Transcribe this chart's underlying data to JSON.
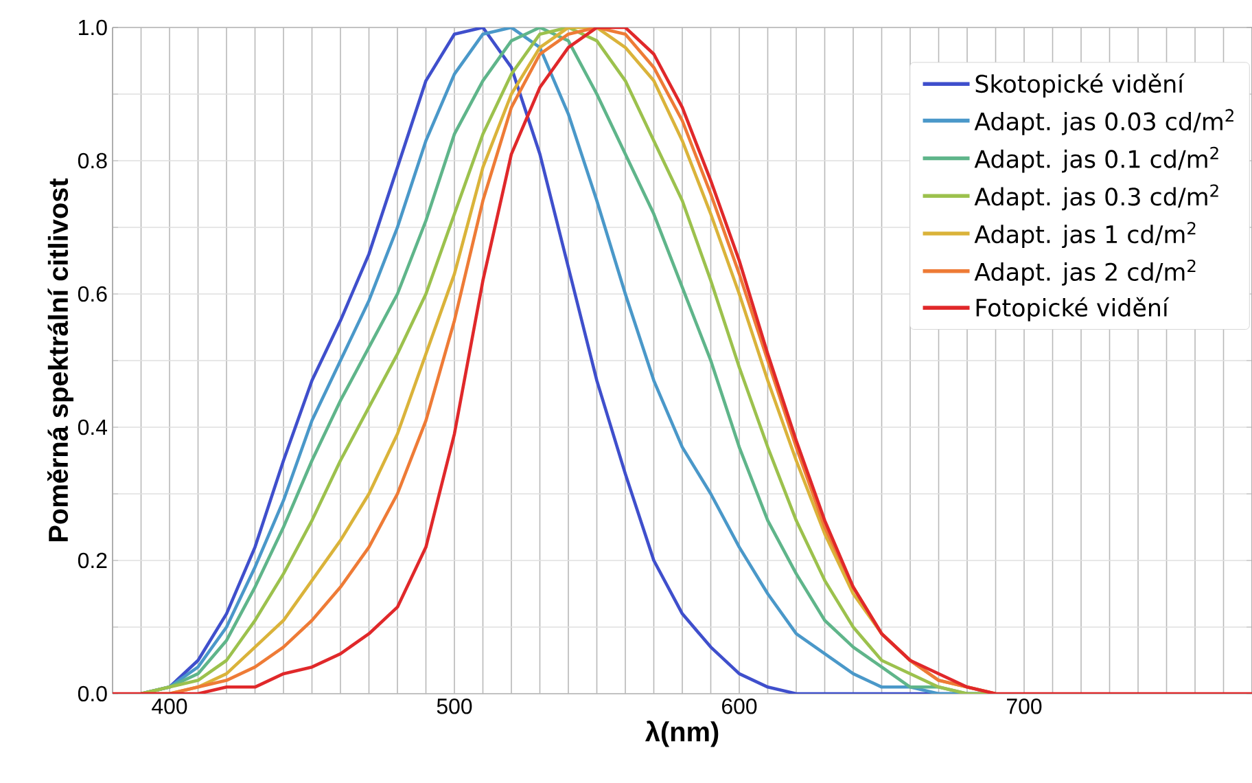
{
  "chart_data": {
    "type": "line",
    "xlabel": "λ(nm)",
    "ylabel": "Poměrná spektrální citlivost",
    "x": [
      380,
      390,
      400,
      410,
      420,
      430,
      440,
      450,
      460,
      470,
      480,
      490,
      500,
      510,
      520,
      530,
      540,
      550,
      560,
      570,
      580,
      590,
      600,
      610,
      620,
      630,
      640,
      650,
      660,
      670,
      680,
      690,
      700,
      710,
      720,
      730,
      740,
      750,
      760,
      770,
      780
    ],
    "series": [
      {
        "name": "Skotopické vidění",
        "color": "#3f4fcc",
        "values": [
          null,
          0,
          0.01,
          0.05,
          0.12,
          0.22,
          0.35,
          0.47,
          0.56,
          0.66,
          0.79,
          0.92,
          0.99,
          1.0,
          0.94,
          0.81,
          0.64,
          0.47,
          0.33,
          0.2,
          0.12,
          0.07,
          0.03,
          0.01,
          0,
          0,
          0,
          0,
          0,
          0,
          0,
          0,
          null,
          null,
          null,
          null,
          null,
          null,
          null,
          null,
          null
        ]
      },
      {
        "name": "Adapt. jas 0.03 cd/m$^{2}$",
        "color": "#4a98c9",
        "values": [
          null,
          0,
          0.01,
          0.04,
          0.1,
          0.19,
          0.29,
          0.41,
          0.5,
          0.59,
          0.7,
          0.83,
          0.93,
          0.99,
          1.0,
          0.97,
          0.87,
          0.74,
          0.6,
          0.47,
          0.37,
          0.3,
          0.22,
          0.15,
          0.09,
          0.06,
          0.03,
          0.01,
          0.01,
          0,
          0,
          0,
          null,
          null,
          null,
          null,
          null,
          null,
          null,
          null,
          null
        ]
      },
      {
        "name": "Adapt. jas 0.1 cd/m$^{2}$",
        "color": "#5fb58a",
        "values": [
          null,
          0,
          0.01,
          0.03,
          0.08,
          0.16,
          0.25,
          0.35,
          0.44,
          0.52,
          0.6,
          0.71,
          0.84,
          0.92,
          0.98,
          1.0,
          0.98,
          0.9,
          0.81,
          0.72,
          0.61,
          0.5,
          0.37,
          0.26,
          0.18,
          0.11,
          0.07,
          0.04,
          0.01,
          0.01,
          0,
          0,
          null,
          null,
          null,
          null,
          null,
          null,
          null,
          null,
          null
        ]
      },
      {
        "name": "Adapt. jas 0.3 cd/m$^{2}$",
        "color": "#9cc14d",
        "values": [
          null,
          0,
          0.01,
          0.02,
          0.05,
          0.11,
          0.18,
          0.26,
          0.35,
          0.43,
          0.51,
          0.6,
          0.72,
          0.84,
          0.93,
          0.99,
          1.0,
          0.98,
          0.92,
          0.83,
          0.74,
          0.62,
          0.49,
          0.37,
          0.26,
          0.17,
          0.1,
          0.05,
          0.03,
          0.01,
          0,
          0,
          null,
          null,
          null,
          null,
          null,
          null,
          null,
          null,
          null
        ]
      },
      {
        "name": "Adapt. jas 1 cd/m$^{2}$",
        "color": "#dab33a",
        "values": [
          null,
          0,
          0,
          0.01,
          0.03,
          0.07,
          0.11,
          0.17,
          0.23,
          0.3,
          0.39,
          0.51,
          0.63,
          0.79,
          0.9,
          0.97,
          1.0,
          1.0,
          0.97,
          0.92,
          0.83,
          0.72,
          0.6,
          0.47,
          0.35,
          0.24,
          0.15,
          0.09,
          0.05,
          0.02,
          0.01,
          0,
          null,
          null,
          null,
          null,
          null,
          null,
          null,
          null,
          null
        ]
      },
      {
        "name": "Adapt. jas 2 cd/m$^{2}$",
        "color": "#ee7b36",
        "values": [
          null,
          0,
          0,
          0.01,
          0.02,
          0.04,
          0.07,
          0.11,
          0.16,
          0.22,
          0.3,
          0.41,
          0.56,
          0.74,
          0.88,
          0.96,
          0.99,
          1.0,
          0.99,
          0.94,
          0.86,
          0.75,
          0.63,
          0.5,
          0.37,
          0.25,
          0.16,
          0.09,
          0.05,
          0.02,
          0.01,
          0,
          null,
          null,
          null,
          null,
          null,
          null,
          null,
          null,
          null
        ]
      },
      {
        "name": "Fotopické vidění",
        "color": "#e0282a",
        "values": [
          0,
          0,
          0,
          0,
          0.01,
          0.01,
          0.03,
          0.04,
          0.06,
          0.09,
          0.13,
          0.22,
          0.39,
          0.62,
          0.81,
          0.91,
          0.97,
          1.0,
          1.0,
          0.96,
          0.88,
          0.77,
          0.65,
          0.51,
          0.38,
          0.26,
          0.16,
          0.09,
          0.05,
          0.03,
          0.01,
          0,
          0,
          0,
          0,
          0,
          0,
          0,
          0,
          0,
          0
        ]
      }
    ],
    "xlim": [
      380,
      780
    ],
    "ylim": [
      0,
      1
    ],
    "xticks": [
      {
        "value": 380,
        "label": null
      },
      {
        "value": 390,
        "label": null
      },
      400,
      {
        "value": 410,
        "label": null
      },
      {
        "value": 420,
        "label": null
      },
      {
        "value": 430,
        "label": null
      },
      {
        "value": 440,
        "label": null
      },
      {
        "value": 450,
        "label": null
      },
      {
        "value": 460,
        "label": null
      },
      {
        "value": 470,
        "label": null
      },
      {
        "value": 480,
        "label": null
      },
      {
        "value": 490,
        "label": null
      },
      500,
      {
        "value": 510,
        "label": null
      },
      {
        "value": 520,
        "label": null
      },
      {
        "value": 530,
        "label": null
      },
      {
        "value": 540,
        "label": null
      },
      {
        "value": 550,
        "label": null
      },
      {
        "value": 560,
        "label": null
      },
      {
        "value": 570,
        "label": null
      },
      {
        "value": 580,
        "label": null
      },
      {
        "value": 590,
        "label": null
      },
      600,
      {
        "value": 610,
        "label": null
      },
      {
        "value": 620,
        "label": null
      },
      {
        "value": 630,
        "label": null
      },
      {
        "value": 640,
        "label": null
      },
      {
        "value": 650,
        "label": null
      },
      {
        "value": 660,
        "label": null
      },
      {
        "value": 670,
        "label": null
      },
      {
        "value": 680,
        "label": null
      },
      {
        "value": 690,
        "label": null
      },
      700,
      {
        "value": 710,
        "label": null
      },
      {
        "value": 720,
        "label": null
      },
      {
        "value": 730,
        "label": null
      },
      {
        "value": 740,
        "label": null
      },
      {
        "value": 750,
        "label": null
      },
      {
        "value": 760,
        "label": null
      },
      {
        "value": 770,
        "label": null
      },
      {
        "value": 780,
        "label": null
      }
    ],
    "yticks": [
      {
        "value": 0,
        "label": "0.0"
      },
      {
        "value": 0.1,
        "label": null
      },
      {
        "value": 0.2,
        "label": "0.2"
      },
      {
        "value": 0.3,
        "label": null
      },
      {
        "value": 0.4,
        "label": "0.4"
      },
      {
        "value": 0.5,
        "label": null
      },
      {
        "value": 0.6,
        "label": "0.6"
      },
      {
        "value": 0.7,
        "label": null
      },
      {
        "value": 0.8,
        "label": "0.8"
      },
      {
        "value": 0.9,
        "label": null
      },
      {
        "value": 1,
        "label": "1.0"
      }
    ],
    "grid": true,
    "legend": "top right"
  }
}
